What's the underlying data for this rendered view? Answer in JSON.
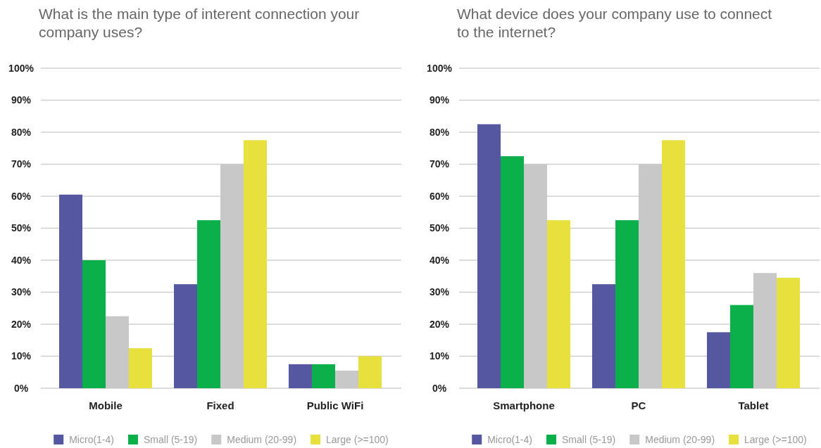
{
  "chart_data": [
    {
      "type": "bar",
      "title": "What is the main type of interent connection your company uses?",
      "categories": [
        "Mobile",
        "Fixed",
        "Public WiFi"
      ],
      "series": [
        {
          "name": "Micro(1-4)",
          "color": "#5558a0",
          "values": [
            60.5,
            32.5,
            7.5
          ]
        },
        {
          "name": "Small (5-19)",
          "color": "#0bb04a",
          "values": [
            40,
            52.5,
            7.5
          ]
        },
        {
          "name": "Medium (20-99)",
          "color": "#c8c8c8",
          "values": [
            22.5,
            70,
            5.5
          ]
        },
        {
          "name": "Large (>=100)",
          "color": "#e8e03c",
          "values": [
            12.5,
            77.5,
            10
          ]
        }
      ],
      "ylim": [
        0,
        100
      ],
      "yticks": [
        {
          "value": 0,
          "label": "0%"
        },
        {
          "value": 10,
          "label": "10%"
        },
        {
          "value": 20,
          "label": "20%"
        },
        {
          "value": 30,
          "label": "30%"
        },
        {
          "value": 40,
          "label": "40%"
        },
        {
          "value": 50,
          "label": "50%"
        },
        {
          "value": 60,
          "label": "60%"
        },
        {
          "value": 70,
          "label": "70%"
        },
        {
          "value": 80,
          "label": "80%"
        },
        {
          "value": 90,
          "label": "90%"
        },
        {
          "value": 100,
          "label": "100%"
        }
      ],
      "grid": "y",
      "legend": "bottom"
    },
    {
      "type": "bar",
      "title": "What device does your company use to connect to the internet?",
      "categories": [
        "Smartphone",
        "PC",
        "Tablet"
      ],
      "series": [
        {
          "name": "Micro(1-4)",
          "color": "#5558a0",
          "values": [
            82.5,
            32.5,
            17.5
          ]
        },
        {
          "name": "Small (5-19)",
          "color": "#0bb04a",
          "values": [
            72.5,
            52.5,
            26
          ]
        },
        {
          "name": "Medium (20-99)",
          "color": "#c8c8c8",
          "values": [
            70,
            70,
            36
          ]
        },
        {
          "name": "Large (>=100)",
          "color": "#e8e03c",
          "values": [
            52.5,
            77.5,
            34.5
          ]
        }
      ],
      "ylim": [
        0,
        100
      ],
      "yticks": [
        {
          "value": 0,
          "label": "0%"
        },
        {
          "value": 10,
          "label": "10%"
        },
        {
          "value": 20,
          "label": "20%"
        },
        {
          "value": 30,
          "label": "30%"
        },
        {
          "value": 40,
          "label": "40%"
        },
        {
          "value": 50,
          "label": "50%"
        },
        {
          "value": 60,
          "label": "60%"
        },
        {
          "value": 70,
          "label": "70%"
        },
        {
          "value": 80,
          "label": "80%"
        },
        {
          "value": 90,
          "label": "90%"
        },
        {
          "value": 100,
          "label": "100%"
        }
      ],
      "grid": "y",
      "legend": "bottom"
    }
  ]
}
